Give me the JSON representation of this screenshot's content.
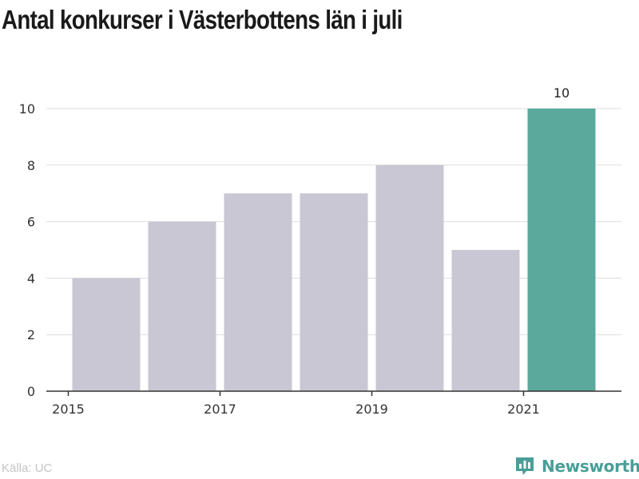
{
  "chart_data": {
    "type": "bar",
    "title": "Antal konkurser i Västerbottens län i juli",
    "categories": [
      2015,
      2016,
      2017,
      2018,
      2019,
      2020,
      2021
    ],
    "values": [
      4,
      6,
      7,
      7,
      8,
      5,
      10
    ],
    "x_tick_labels": [
      "2015",
      "2017",
      "2019",
      "2021"
    ],
    "y_ticks": [
      0,
      2,
      4,
      6,
      8,
      10
    ],
    "ylim": [
      0,
      10
    ],
    "xlabel": "",
    "ylabel": "",
    "grid": true,
    "highlight": {
      "category": 2021,
      "label": "10"
    },
    "colors": {
      "bar": "#c8c7d3",
      "highlight": "#5aa99c",
      "grid": "#dddddd",
      "axis": "#333333"
    }
  },
  "footer": {
    "source": "Källa: UC",
    "brand": "Newsworthy",
    "brand_icon": "newsworthy-logo-icon",
    "brand_color": "#4a9e98"
  }
}
